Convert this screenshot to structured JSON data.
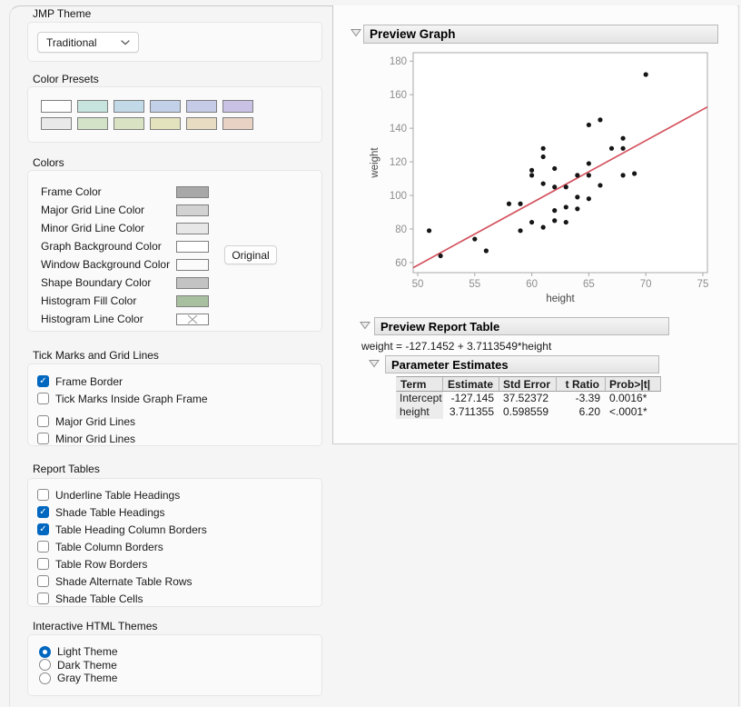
{
  "left_panel": {
    "jmp_theme": {
      "label": "JMP Theme",
      "dropdown_value": "Traditional"
    },
    "color_presets": {
      "label": "Color Presets",
      "rows": [
        [
          "#ffffff",
          "#c7e4de",
          "#c2d9e8",
          "#c2d0e8",
          "#c6cbe8",
          "#c9c2e4"
        ],
        [
          "#e9e9e9",
          "#d3e3c8",
          "#d9e3c4",
          "#e3e3bd",
          "#e8dcc2",
          "#e8d2c4"
        ]
      ]
    },
    "colors": {
      "label": "Colors",
      "original_button": "Original",
      "rows": [
        {
          "label": "Frame Color",
          "swatch": "#a8a8a8"
        },
        {
          "label": "Major Grid Line Color",
          "swatch": "#d2d2d2"
        },
        {
          "label": "Minor Grid Line Color",
          "swatch": "#e7e7e7"
        },
        {
          "label": "Graph Background Color",
          "swatch": "#ffffff"
        },
        {
          "label": "Window Background Color",
          "swatch": "#fbfbfb"
        },
        {
          "label": "Shape Boundary Color",
          "swatch": "#c3c3c3"
        },
        {
          "label": "Histogram Fill Color",
          "swatch": "#a9c0a0"
        },
        {
          "label": "Histogram Line Color",
          "swatch": "none"
        }
      ]
    },
    "tick_marks": {
      "label": "Tick Marks and Grid Lines",
      "items": [
        {
          "label": "Frame Border",
          "checked": true,
          "gap_before": false
        },
        {
          "label": "Tick Marks Inside Graph Frame",
          "checked": false,
          "gap_before": false
        },
        {
          "label": "Major Grid Lines",
          "checked": false,
          "gap_before": true
        },
        {
          "label": "Minor Grid Lines",
          "checked": false,
          "gap_before": false
        }
      ]
    },
    "report_tables": {
      "label": "Report Tables",
      "items": [
        {
          "label": "Underline Table Headings",
          "checked": false,
          "gap_before": false
        },
        {
          "label": "Shade Table Headings",
          "checked": true,
          "gap_before": false
        },
        {
          "label": "Table Heading Column Borders",
          "checked": true,
          "gap_before": false
        },
        {
          "label": "Table Column Borders",
          "checked": false,
          "gap_before": false
        },
        {
          "label": "Table Row Borders",
          "checked": false,
          "gap_before": false
        },
        {
          "label": "Shade Alternate Table Rows",
          "checked": false,
          "gap_before": false
        },
        {
          "label": "Shade Table Cells",
          "checked": false,
          "gap_before": false
        }
      ]
    },
    "html_themes": {
      "label": "Interactive HTML Themes",
      "items": [
        {
          "label": "Light Theme",
          "selected": true
        },
        {
          "label": "Dark Theme",
          "selected": false
        },
        {
          "label": "Gray Theme",
          "selected": false
        }
      ]
    }
  },
  "preview": {
    "graph_title": "Preview Graph",
    "report_title": "Preview Report Table",
    "equation": "weight = -127.1452 + 3.7113549*height",
    "param_title": "Parameter Estimates",
    "table": {
      "columns": [
        "Term",
        "Estimate",
        "Std Error",
        "t Ratio",
        "Prob>|t|"
      ],
      "rows": [
        [
          "Intercept",
          "-127.145",
          "37.52372",
          "-3.39",
          "0.0016*"
        ],
        [
          "height",
          "3.711355",
          "0.598559",
          "6.20",
          "<.0001*"
        ]
      ]
    }
  },
  "chart_data": {
    "type": "scatter",
    "title": "",
    "xlabel": "height",
    "ylabel": "weight",
    "xlim": [
      49.6,
      75.4
    ],
    "ylim": [
      54,
      185
    ],
    "xticks": [
      50,
      55,
      60,
      65,
      70,
      75
    ],
    "yticks": [
      60,
      80,
      100,
      120,
      140,
      160,
      180
    ],
    "grid": false,
    "legend": "none",
    "points": [
      [
        51,
        79
      ],
      [
        52,
        64
      ],
      [
        55,
        74
      ],
      [
        56,
        67
      ],
      [
        58,
        95
      ],
      [
        59,
        79
      ],
      [
        59,
        95
      ],
      [
        60,
        84
      ],
      [
        60,
        112
      ],
      [
        60,
        115
      ],
      [
        61,
        81
      ],
      [
        61,
        107
      ],
      [
        61,
        123
      ],
      [
        61,
        128
      ],
      [
        62,
        85
      ],
      [
        62,
        91
      ],
      [
        62,
        105
      ],
      [
        62,
        116
      ],
      [
        63,
        84
      ],
      [
        63,
        93
      ],
      [
        63,
        105
      ],
      [
        64,
        92
      ],
      [
        64,
        99
      ],
      [
        64,
        112
      ],
      [
        65,
        98
      ],
      [
        65,
        112
      ],
      [
        65,
        119
      ],
      [
        65,
        142
      ],
      [
        66,
        106
      ],
      [
        66,
        145
      ],
      [
        67,
        128
      ],
      [
        68,
        112
      ],
      [
        68,
        128
      ],
      [
        68,
        134
      ],
      [
        69,
        113
      ],
      [
        70,
        172
      ]
    ],
    "fit_line": {
      "intercept": -127.1452,
      "slope": 3.7113549,
      "color": "#d4525e"
    },
    "point_color": "#161616",
    "frame_color": "#a9a9a9",
    "tick_label_color": "#8e8e8e",
    "axis_label_color": "#474747"
  },
  "ui_colors": {
    "accent": "#0067c0",
    "header_border": "#b9b9b9"
  }
}
